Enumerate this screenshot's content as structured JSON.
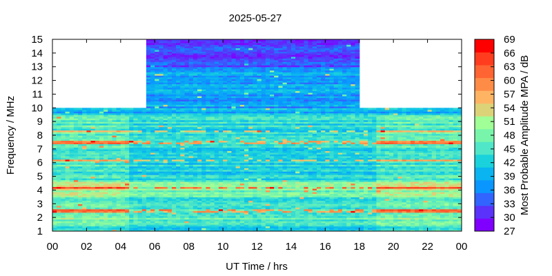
{
  "chart_data": {
    "type": "heatmap",
    "title": "2025-05-27",
    "xlabel": "UT Time / hrs",
    "ylabel": "Frequency / MHz",
    "colorbar_label": "Most Probable Amplitude MPA / dB",
    "x_range": [
      0,
      24
    ],
    "x_ticks": [
      "00",
      "02",
      "04",
      "06",
      "08",
      "10",
      "12",
      "14",
      "16",
      "18",
      "20",
      "22",
      "00"
    ],
    "y_range": [
      1,
      15
    ],
    "y_ticks": [
      1,
      2,
      3,
      4,
      5,
      6,
      7,
      8,
      9,
      10,
      11,
      12,
      13,
      14,
      15
    ],
    "colorbar_ticks": [
      27,
      30,
      33,
      36,
      39,
      42,
      45,
      48,
      51,
      54,
      57,
      60,
      63,
      66,
      69
    ],
    "colorbar_colors": [
      "#8000ff",
      "#5a32fa",
      "#3264ff",
      "#0a96ff",
      "#0ab4f0",
      "#19d2dc",
      "#50e6c8",
      "#78f5aa",
      "#a0ff96",
      "#dcd278",
      "#ffb464",
      "#ff8c46",
      "#ff6432",
      "#ff3c1e",
      "#ff0000"
    ],
    "coverage": [
      {
        "t_start": 0,
        "t_end": 5.5,
        "f_max": 10
      },
      {
        "t_start": 5.5,
        "t_end": 18,
        "f_max": 15
      },
      {
        "t_start": 18,
        "t_end": 24,
        "f_max": 10
      }
    ],
    "bands": [
      {
        "f_min": 1.0,
        "f_max": 1.4,
        "level": 40
      },
      {
        "f_min": 1.4,
        "f_max": 3.5,
        "level": 45
      },
      {
        "f_min": 3.5,
        "f_max": 4.6,
        "level": 48
      },
      {
        "f_min": 4.6,
        "f_max": 7.0,
        "level": 42
      },
      {
        "f_min": 7.0,
        "f_max": 9.5,
        "level": 43
      },
      {
        "f_min": 9.5,
        "f_max": 10.0,
        "level": 39
      },
      {
        "f_min": 10.0,
        "f_max": 13.0,
        "level": 37
      },
      {
        "f_min": 13.0,
        "f_max": 15.0,
        "level": 31
      }
    ],
    "strong_lines_MHz": [
      2.5,
      4.2,
      6.2,
      7.5,
      8.3
    ]
  }
}
